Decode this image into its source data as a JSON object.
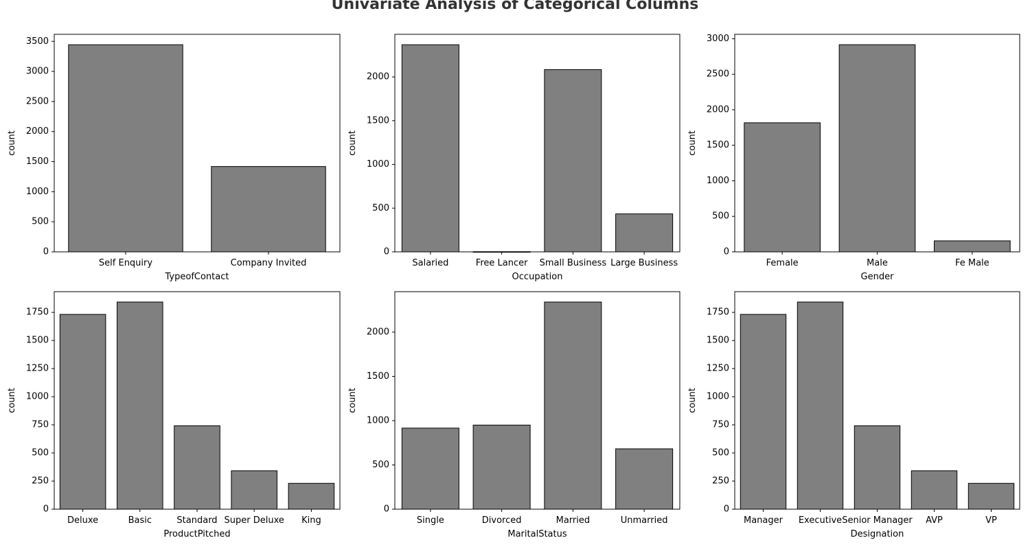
{
  "figure": {
    "title": "Univariate Analysis of Categorical Columns"
  },
  "style": {
    "bar_fill": "#808080",
    "bar_stroke": "#000000",
    "frame_stroke": "#000000",
    "background": "#ffffff"
  },
  "chart_data": [
    {
      "type": "bar",
      "categories": [
        "Self Enquiry",
        "Company Invited"
      ],
      "values": [
        3444,
        1419
      ],
      "xlabel": "TypeofContact",
      "ylabel": "count",
      "ylim": [
        0,
        3617
      ],
      "yticks": [
        0,
        500,
        1000,
        1500,
        2000,
        2500,
        3000,
        3500
      ],
      "grid": false
    },
    {
      "type": "bar",
      "categories": [
        "Salaried",
        "Free Lancer",
        "Small Business",
        "Large Business"
      ],
      "values": [
        2368,
        2,
        2084,
        434
      ],
      "xlabel": "Occupation",
      "ylabel": "count",
      "ylim": [
        0,
        2487
      ],
      "yticks": [
        0,
        500,
        1000,
        1500,
        2000
      ],
      "grid": false
    },
    {
      "type": "bar",
      "categories": [
        "Female",
        "Male",
        "Fe Male"
      ],
      "values": [
        1817,
        2916,
        155
      ],
      "xlabel": "Gender",
      "ylabel": "count",
      "ylim": [
        0,
        3062
      ],
      "yticks": [
        0,
        500,
        1000,
        1500,
        2000,
        2500,
        3000
      ],
      "grid": false
    },
    {
      "type": "bar",
      "categories": [
        "Deluxe",
        "Basic",
        "Standard",
        "Super Deluxe",
        "King"
      ],
      "values": [
        1732,
        1842,
        742,
        342,
        230
      ],
      "xlabel": "ProductPitched",
      "ylabel": "count",
      "ylim": [
        0,
        1934
      ],
      "yticks": [
        0,
        250,
        500,
        750,
        1000,
        1250,
        1500,
        1750
      ],
      "grid": false
    },
    {
      "type": "bar",
      "categories": [
        "Single",
        "Divorced",
        "Married",
        "Unmarried"
      ],
      "values": [
        916,
        950,
        2340,
        682
      ],
      "xlabel": "MaritalStatus",
      "ylabel": "count",
      "ylim": [
        0,
        2457
      ],
      "yticks": [
        0,
        500,
        1000,
        1500,
        2000
      ],
      "grid": false
    },
    {
      "type": "bar",
      "categories": [
        "Manager",
        "Executive",
        "Senior Manager",
        "AVP",
        "VP"
      ],
      "values": [
        1732,
        1842,
        742,
        342,
        230
      ],
      "xlabel": "Designation",
      "ylabel": "count",
      "ylim": [
        0,
        1934
      ],
      "yticks": [
        0,
        250,
        500,
        750,
        1000,
        1250,
        1500,
        1750
      ],
      "grid": false
    }
  ]
}
